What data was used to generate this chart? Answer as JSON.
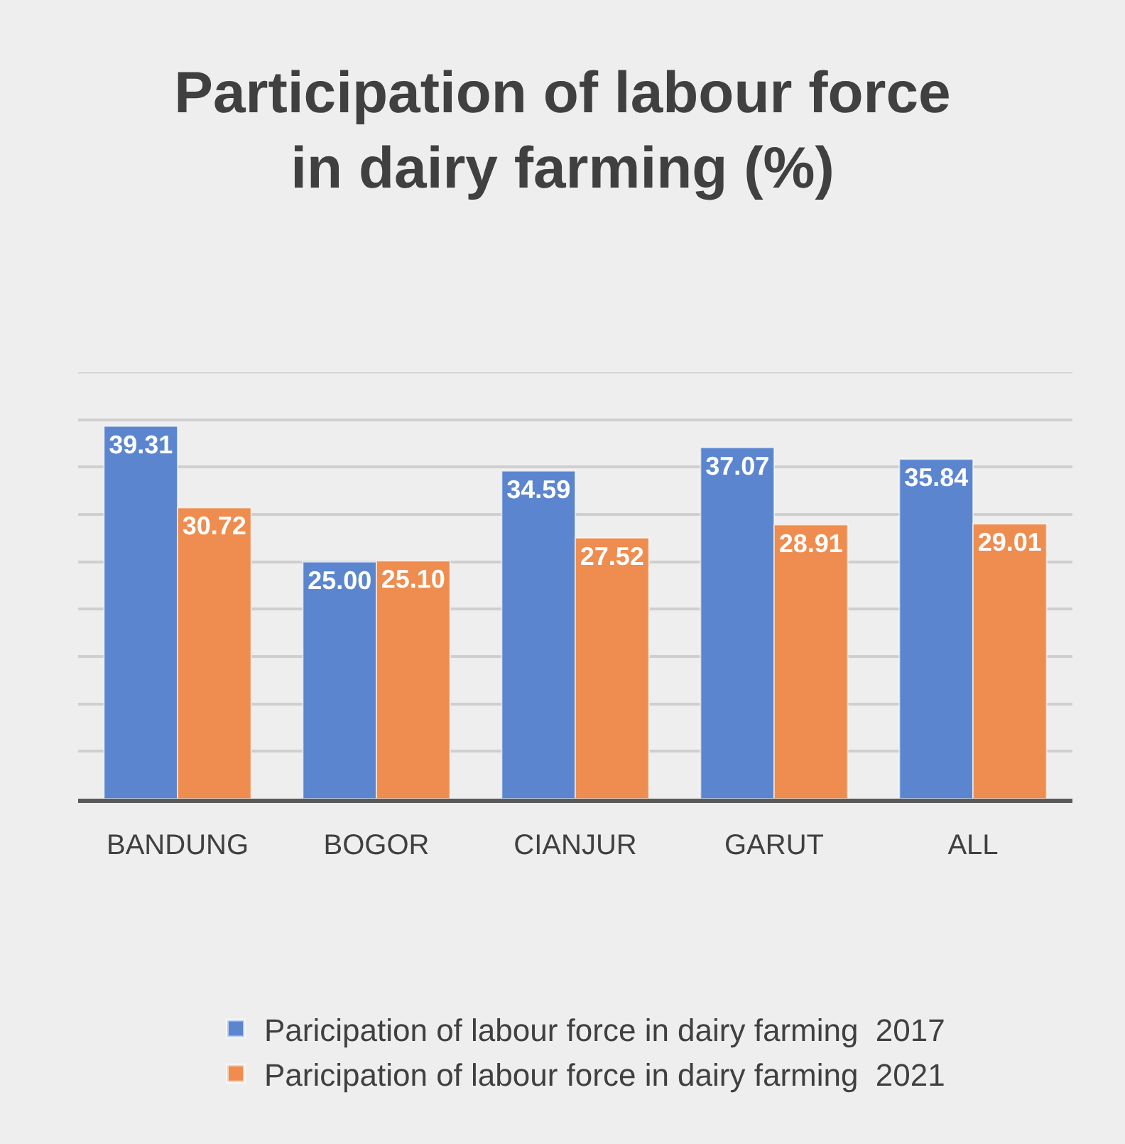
{
  "chart_data": {
    "type": "bar",
    "title": "Participation of labour force\nin dairy farming (%)",
    "categories": [
      "BANDUNG",
      "BOGOR",
      "CIANJUR",
      "GARUT",
      "ALL"
    ],
    "series": [
      {
        "name": "Paricipation of labour force in dairy farming  2017",
        "color": "#5b86cf",
        "values": [
          39.31,
          25.0,
          34.59,
          37.07,
          35.84
        ],
        "value_labels": [
          "39.31",
          "25.00",
          "34.59",
          "37.07",
          "35.84"
        ]
      },
      {
        "name": "Paricipation of labour force in dairy farming  2021",
        "color": "#ee8d4f",
        "values": [
          30.72,
          25.1,
          27.52,
          28.91,
          29.01
        ],
        "value_labels": [
          "30.72",
          "25.10",
          "27.52",
          "28.91",
          "29.01"
        ]
      }
    ],
    "ylim": [
      0,
      45
    ],
    "yticks": [
      {
        "value": 0,
        "label": null
      },
      {
        "value": 5,
        "label": null
      },
      {
        "value": 10,
        "label": null
      },
      {
        "value": 15,
        "label": null
      },
      {
        "value": 20,
        "label": null
      },
      {
        "value": 25,
        "label": null
      },
      {
        "value": 30,
        "label": null
      },
      {
        "value": 35,
        "label": null
      },
      {
        "value": 40,
        "label": null
      },
      {
        "value": 45,
        "label": null
      }
    ],
    "grid": "y",
    "legend": "bottom",
    "tick_labels": "x"
  }
}
